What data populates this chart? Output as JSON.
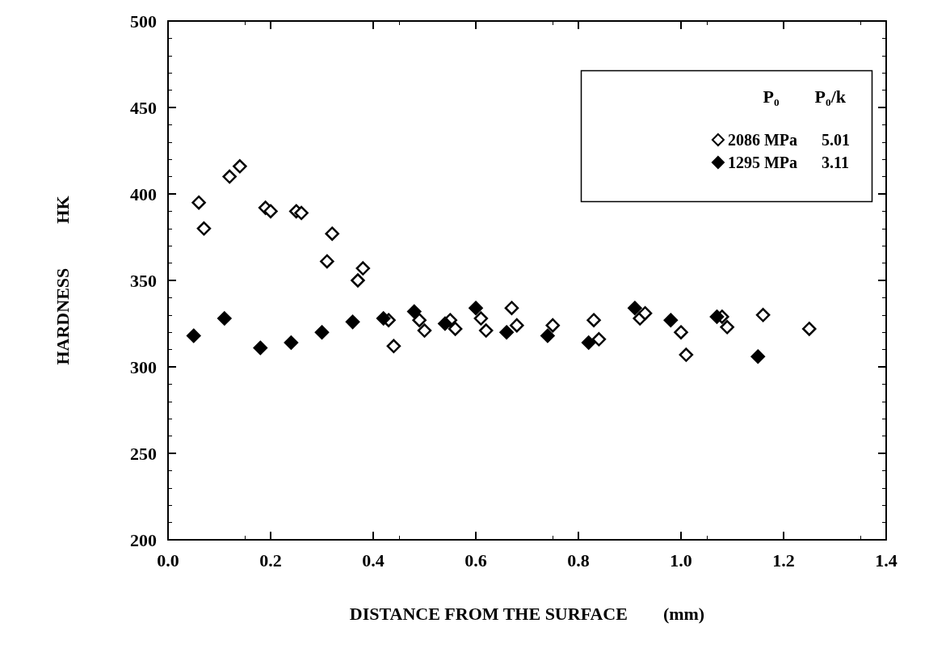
{
  "chart_data": {
    "type": "scatter",
    "xlabel": "DISTANCE FROM THE SURFACE        (mm)",
    "ylabel": "HARDNESS          HK",
    "legend_title": "P₀        P₀/k",
    "xlim": [
      0,
      1.4
    ],
    "xticks": [
      {
        "value": 0,
        "label": "0.0"
      },
      0.2,
      0.4,
      0.6,
      0.8,
      {
        "value": 1,
        "label": "1.0"
      },
      1.2,
      1.4
    ],
    "ylim": [
      200,
      500
    ],
    "yticks": [
      200,
      250,
      300,
      350,
      400,
      450,
      500
    ],
    "grid": false,
    "legend": "top right",
    "marker": "diamond",
    "series": [
      {
        "name": "2086 MPa      5.01",
        "color": "#ffffff",
        "x": [
          0.06,
          0.07,
          0.12,
          0.14,
          0.19,
          0.2,
          0.25,
          0.26,
          0.31,
          0.32,
          0.37,
          0.38,
          0.43,
          0.44,
          0.49,
          0.5,
          0.55,
          0.56,
          0.61,
          0.62,
          0.67,
          0.68,
          0.75,
          0.83,
          0.84,
          0.92,
          0.93,
          1.0,
          1.01,
          1.08,
          1.09,
          1.16,
          1.25
        ],
        "values": [
          395,
          380,
          410,
          416,
          392,
          390,
          390,
          389,
          361,
          377,
          350,
          357,
          327,
          312,
          327,
          321,
          327,
          322,
          328,
          321,
          334,
          324,
          324,
          327,
          316,
          328,
          331,
          320,
          307,
          329,
          323,
          330,
          322
        ]
      },
      {
        "name": "1295 MPa      3.11",
        "color": "#000000",
        "x": [
          0.05,
          0.11,
          0.18,
          0.24,
          0.3,
          0.36,
          0.42,
          0.48,
          0.54,
          0.6,
          0.66,
          0.74,
          0.82,
          0.91,
          0.98,
          1.07,
          1.15
        ],
        "values": [
          318,
          328,
          311,
          314,
          320,
          326,
          328,
          332,
          325,
          334,
          320,
          318,
          314,
          334,
          327,
          329,
          306
        ]
      }
    ]
  }
}
